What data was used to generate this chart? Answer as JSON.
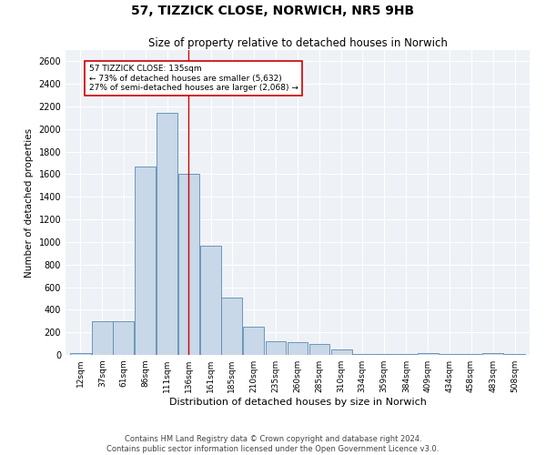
{
  "title": "57, TIZZICK CLOSE, NORWICH, NR5 9HB",
  "subtitle": "Size of property relative to detached houses in Norwich",
  "xlabel": "Distribution of detached houses by size in Norwich",
  "ylabel": "Number of detached properties",
  "bar_color": "#c8d8e8",
  "bar_edge_color": "#5a8ab0",
  "background_color": "#eef2f7",
  "annotation_text": "57 TIZZICK CLOSE: 135sqm\n← 73% of detached houses are smaller (5,632)\n27% of semi-detached houses are larger (2,068) →",
  "vline_x": 135,
  "vline_color": "#cc0000",
  "footer_line1": "Contains HM Land Registry data © Crown copyright and database right 2024.",
  "footer_line2": "Contains public sector information licensed under the Open Government Licence v3.0.",
  "categories": [
    "12sqm",
    "37sqm",
    "61sqm",
    "86sqm",
    "111sqm",
    "136sqm",
    "161sqm",
    "185sqm",
    "210sqm",
    "235sqm",
    "260sqm",
    "285sqm",
    "310sqm",
    "334sqm",
    "359sqm",
    "384sqm",
    "409sqm",
    "434sqm",
    "458sqm",
    "483sqm",
    "508sqm"
  ],
  "values": [
    20,
    300,
    300,
    1670,
    2140,
    1600,
    970,
    510,
    250,
    120,
    115,
    95,
    45,
    10,
    5,
    5,
    20,
    5,
    5,
    20,
    5
  ],
  "bin_centers": [
    12,
    37,
    61,
    86,
    111,
    136,
    161,
    185,
    210,
    235,
    260,
    285,
    310,
    334,
    359,
    384,
    409,
    434,
    458,
    483,
    508
  ],
  "bin_width": 25,
  "ylim": [
    0,
    2700
  ],
  "yticks": [
    0,
    200,
    400,
    600,
    800,
    1000,
    1200,
    1400,
    1600,
    1800,
    2000,
    2200,
    2400,
    2600
  ],
  "property_size": 135
}
